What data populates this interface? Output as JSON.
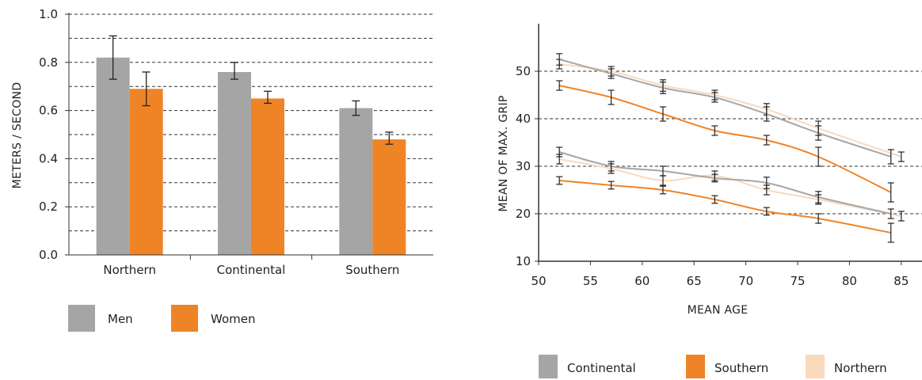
{
  "chart_data": [
    {
      "type": "bar",
      "title": "",
      "xlabel": "",
      "ylabel": "METERS / SECOND",
      "ylim": [
        0,
        1.0
      ],
      "yticks": [
        "0.0",
        "0.2",
        "0.4",
        "0.6",
        "0.8",
        "1.0"
      ],
      "grid": "dashed horizontal lines every 0.1",
      "categories": [
        "Northern",
        "Continental",
        "Southern"
      ],
      "series": [
        {
          "name": "Men",
          "color": "#a5a5a5",
          "values": [
            0.82,
            0.76,
            0.61
          ],
          "err_low": [
            0.73,
            0.73,
            0.58
          ],
          "err_high": [
            0.91,
            0.8,
            0.64
          ]
        },
        {
          "name": "Women",
          "color": "#ef8427",
          "values": [
            0.69,
            0.65,
            0.48
          ],
          "err_low": [
            0.62,
            0.63,
            0.46
          ],
          "err_high": [
            0.76,
            0.68,
            0.51
          ]
        }
      ],
      "legend": "bottom-left"
    },
    {
      "type": "line",
      "title": "",
      "xlabel": "MEAN AGE",
      "ylabel": "MEAN OF MAX. GRIP",
      "xlim": [
        50,
        87
      ],
      "ylim": [
        10,
        60
      ],
      "xticks": [
        "50",
        "55",
        "60",
        "65",
        "70",
        "75",
        "80",
        "85"
      ],
      "yticks": [
        "10",
        "20",
        "30",
        "40",
        "50"
      ],
      "grid": "dashed horizontal lines at 20, 30, 40, 50",
      "series": [
        {
          "name": "Continental",
          "color": "#a6a6a6",
          "group": "men",
          "x": [
            52,
            57,
            62,
            67,
            72,
            77,
            84
          ],
          "y": [
            52.5,
            49.5,
            46.5,
            44.5,
            41,
            37,
            32
          ],
          "err": [
            1.2,
            1.0,
            1.2,
            1.0,
            1.5,
            1.5,
            1.5
          ]
        },
        {
          "name": "Northern",
          "color": "#fad9bd",
          "group": "men",
          "x": [
            52,
            57,
            62,
            67,
            72,
            77,
            85
          ],
          "y": [
            51.5,
            50,
            47,
            45,
            42,
            38,
            32
          ],
          "err": [
            1.0,
            1.0,
            1.2,
            1.0,
            1.2,
            1.5,
            1.0
          ]
        },
        {
          "name": "Southern",
          "color": "#ef8427",
          "group": "men",
          "x": [
            52,
            57,
            62,
            67,
            72,
            77,
            84
          ],
          "y": [
            47,
            44.5,
            41,
            37.5,
            35.5,
            32,
            24.5
          ],
          "err": [
            1.0,
            1.5,
            1.5,
            1.0,
            1.0,
            2.0,
            2.0
          ]
        },
        {
          "name": "Continental",
          "color": "#a6a6a6",
          "group": "women",
          "x": [
            52,
            57,
            62,
            67,
            72,
            77,
            84
          ],
          "y": [
            33,
            30,
            29,
            27.5,
            26.5,
            23.5,
            20
          ],
          "err": [
            1.0,
            1.0,
            1.0,
            0.8,
            1.2,
            1.2,
            1.0
          ]
        },
        {
          "name": "Northern",
          "color": "#fad9bd",
          "group": "women",
          "x": [
            52,
            57,
            62,
            67,
            72,
            77,
            85
          ],
          "y": [
            31.5,
            29.5,
            27,
            28,
            25,
            23,
            19.5
          ],
          "err": [
            1.0,
            1.0,
            1.0,
            1.0,
            1.0,
            1.0,
            1.0
          ]
        },
        {
          "name": "Southern",
          "color": "#ef8427",
          "group": "women",
          "x": [
            52,
            57,
            62,
            67,
            72,
            77,
            84
          ],
          "y": [
            27,
            26,
            25,
            23,
            20.5,
            19,
            16
          ],
          "err": [
            0.8,
            0.8,
            0.8,
            0.8,
            0.8,
            1.0,
            2.0
          ]
        }
      ],
      "legend": "bottom",
      "legend_entries": [
        {
          "name": "Continental",
          "color": "#a6a6a6"
        },
        {
          "name": "Southern",
          "color": "#ef8427"
        },
        {
          "name": "Northern",
          "color": "#fad9bd"
        }
      ]
    }
  ]
}
